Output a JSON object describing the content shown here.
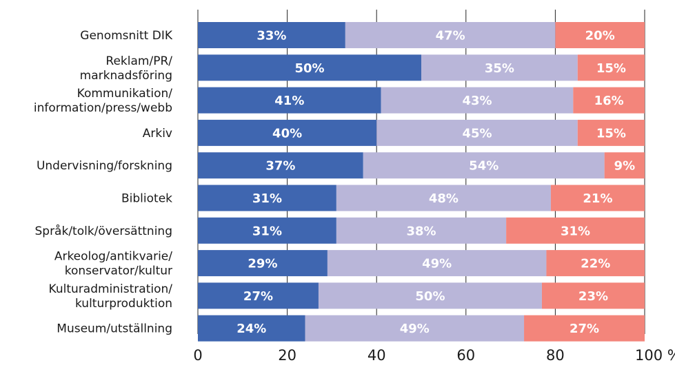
{
  "chart_data": {
    "type": "bar",
    "orientation": "horizontal",
    "stacked": true,
    "percent": true,
    "categories": [
      [
        "Genomsnitt DIK"
      ],
      [
        "Reklam/PR/",
        "marknadsföring"
      ],
      [
        "Kommunikation/",
        "information/press/webb"
      ],
      [
        "Arkiv"
      ],
      [
        "Undervisning/forskning"
      ],
      [
        "Bibliotek"
      ],
      [
        "Språk/tolk/översättning"
      ],
      [
        "Arkeolog/antikvarie/",
        "konservator/kultur"
      ],
      [
        "Kulturadministration/",
        "kulturproduktion"
      ],
      [
        "Museum/utställning"
      ]
    ],
    "series": [
      {
        "color": "#3f66b0",
        "values": [
          33,
          50,
          41,
          40,
          37,
          31,
          31,
          29,
          27,
          24
        ]
      },
      {
        "color": "#b9b6d9",
        "values": [
          47,
          35,
          43,
          45,
          54,
          48,
          38,
          49,
          50,
          49
        ]
      },
      {
        "color": "#f3857b",
        "values": [
          20,
          15,
          16,
          15,
          9,
          21,
          31,
          22,
          23,
          27
        ]
      }
    ],
    "value_label_suffix": "%",
    "xlim": [
      0,
      100
    ],
    "xticks": [
      "0",
      "20",
      "40",
      "60",
      "80",
      "100 %"
    ],
    "grid": true
  }
}
